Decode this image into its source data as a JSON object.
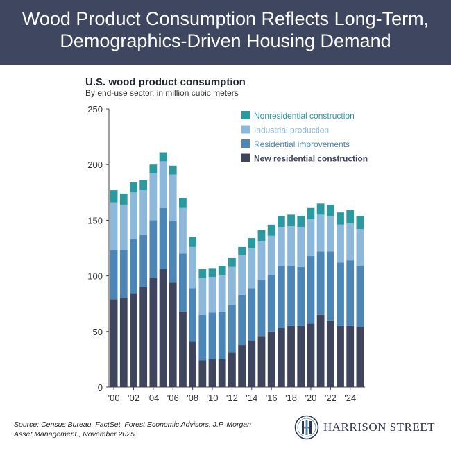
{
  "header": {
    "title_line1": "Wood Product Consumption Reflects Long-Term,",
    "title_line2": "Demographics-Driven Housing Demand"
  },
  "chart_data": {
    "type": "bar",
    "stacked": true,
    "title": "U.S. wood product consumption",
    "subtitle": "By end-use sector, in million cubic meters",
    "xlabel": "",
    "ylabel": "",
    "ylim": [
      0,
      250
    ],
    "yticks": [
      0,
      50,
      100,
      150,
      200,
      250
    ],
    "grid": false,
    "legend_position": "top-right",
    "categories": [
      "2000",
      "2001",
      "2002",
      "2003",
      "2004",
      "2005",
      "2006",
      "2007",
      "2008",
      "2009",
      "2010",
      "2011",
      "2012",
      "2013",
      "2014",
      "2015",
      "2016",
      "2017",
      "2018",
      "2019",
      "2020",
      "2021",
      "2022",
      "2023",
      "2024",
      "2025"
    ],
    "x_tick_labels": [
      {
        "category": "2000",
        "label": "'00"
      },
      {
        "category": "2002",
        "label": "'02"
      },
      {
        "category": "2004",
        "label": "'04"
      },
      {
        "category": "2006",
        "label": "'06"
      },
      {
        "category": "2008",
        "label": "'08"
      },
      {
        "category": "2010",
        "label": "'10"
      },
      {
        "category": "2012",
        "label": "'12"
      },
      {
        "category": "2014",
        "label": "'14"
      },
      {
        "category": "2016",
        "label": "'16"
      },
      {
        "category": "2018",
        "label": "'18"
      },
      {
        "category": "2020",
        "label": "'20"
      },
      {
        "category": "2022",
        "label": "'22"
      },
      {
        "category": "2024",
        "label": "'24"
      }
    ],
    "series": [
      {
        "name": "New residential construction",
        "color": "#40455e",
        "values": [
          79,
          80,
          84,
          90,
          98,
          106,
          94,
          68,
          41,
          24,
          25,
          25,
          31,
          38,
          42,
          46,
          50,
          53,
          55,
          55,
          57,
          65,
          60,
          55,
          55,
          54
        ]
      },
      {
        "name": "Residential improvements",
        "color": "#4b86b7",
        "values": [
          44,
          43,
          49,
          47,
          52,
          55,
          55,
          52,
          48,
          41,
          42,
          43,
          43,
          45,
          47,
          50,
          51,
          56,
          54,
          53,
          61,
          57,
          62,
          57,
          59,
          55
        ]
      },
      {
        "name": "Industrial production",
        "color": "#8cb8dc",
        "values": [
          43,
          41,
          42,
          40,
          42,
          42,
          42,
          41,
          37,
          33,
          32,
          33,
          34,
          36,
          36,
          35,
          35,
          35,
          36,
          36,
          33,
          33,
          32,
          34,
          33,
          33
        ]
      },
      {
        "name": "Nonresidential construction",
        "color": "#2a9aa0",
        "values": [
          11,
          10,
          9,
          9,
          8,
          8,
          8,
          9,
          9,
          8,
          8,
          8,
          8,
          7,
          9,
          10,
          10,
          10,
          10,
          10,
          10,
          10,
          10,
          11,
          12,
          12
        ]
      }
    ]
  },
  "footer": {
    "source": "Source: Census Bureau, FactSet,  Forest Economic Advisors, J.P. Morgan Asset Management., November 2025"
  },
  "logo": {
    "text": "HARRISON STREET"
  }
}
